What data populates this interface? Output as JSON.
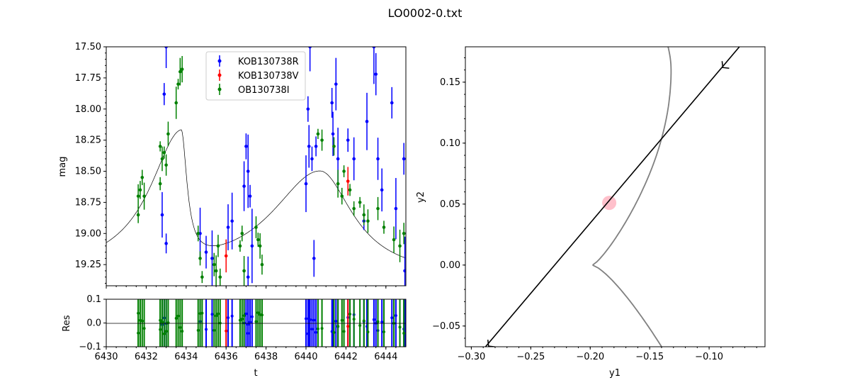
{
  "title": "LO0002-0.txt",
  "chart_data": [
    {
      "type": "scatter",
      "panel": "lightcurve",
      "xlabel": "",
      "ylabel": "mag",
      "xlim": [
        6430,
        6445
      ],
      "ylim": [
        19.42,
        17.5
      ],
      "y_inverted": true,
      "xticks": [
        6430,
        6432,
        6434,
        6436,
        6438,
        6440,
        6442,
        6444
      ],
      "yticks": [
        "17.50",
        "17.75",
        "18.00",
        "18.25",
        "18.50",
        "18.75",
        "19.00",
        "19.25"
      ],
      "legend": "upper-center",
      "series": [
        {
          "name": "KOB130738R",
          "color": "#0000ff",
          "points": [
            [
              6432.8,
              18.85
            ],
            [
              6432.9,
              17.88
            ],
            [
              6433.0,
              17.5
            ],
            [
              6433.0,
              19.08
            ],
            [
              6434.7,
              19.0
            ],
            [
              6435.0,
              19.15
            ],
            [
              6435.3,
              19.2
            ],
            [
              6436.1,
              18.95
            ],
            [
              6436.3,
              18.9
            ],
            [
              6436.9,
              18.62
            ],
            [
              6437.0,
              18.3
            ],
            [
              6437.1,
              18.5
            ],
            [
              6437.2,
              18.7
            ],
            [
              6437.3,
              19.1
            ],
            [
              6437.1,
              19.35
            ],
            [
              6440.0,
              18.6
            ],
            [
              6440.1,
              18.0
            ],
            [
              6440.15,
              18.3
            ],
            [
              6440.2,
              17.5
            ],
            [
              6440.3,
              18.4
            ],
            [
              6440.4,
              19.2
            ],
            [
              6440.5,
              18.3
            ],
            [
              6441.3,
              17.95
            ],
            [
              6441.35,
              18.2
            ],
            [
              6441.5,
              17.8
            ],
            [
              6441.6,
              18.4
            ],
            [
              6442.1,
              18.25
            ],
            [
              6442.4,
              18.4
            ],
            [
              6442.9,
              18.9
            ],
            [
              6443.05,
              18.1
            ],
            [
              6443.4,
              17.5
            ],
            [
              6443.5,
              17.72
            ],
            [
              6443.6,
              18.4
            ],
            [
              6443.8,
              18.65
            ],
            [
              6444.3,
              17.95
            ],
            [
              6444.5,
              18.8
            ],
            [
              6444.9,
              18.4
            ],
            [
              6444.95,
              19.3
            ]
          ]
        },
        {
          "name": "KOB130738V",
          "color": "#ff0000",
          "points": [
            [
              6436.0,
              19.18
            ],
            [
              6442.1,
              18.58
            ]
          ]
        },
        {
          "name": "OB130738I",
          "color": "#008000",
          "points": [
            [
              6431.6,
              18.7
            ],
            [
              6431.7,
              18.65
            ],
            [
              6431.8,
              18.55
            ],
            [
              6431.9,
              18.7
            ],
            [
              6431.6,
              18.85
            ],
            [
              6432.7,
              18.3
            ],
            [
              6432.8,
              18.4
            ],
            [
              6432.9,
              18.35
            ],
            [
              6433.0,
              18.45
            ],
            [
              6433.1,
              18.2
            ],
            [
              6432.7,
              18.6
            ],
            [
              6433.5,
              17.95
            ],
            [
              6433.6,
              17.8
            ],
            [
              6433.7,
              17.7
            ],
            [
              6433.8,
              17.68
            ],
            [
              6434.6,
              19.0
            ],
            [
              6434.7,
              19.2
            ],
            [
              6434.8,
              19.35
            ],
            [
              6435.4,
              19.25
            ],
            [
              6435.5,
              19.3
            ],
            [
              6435.6,
              19.1
            ],
            [
              6435.7,
              19.35
            ],
            [
              6436.7,
              19.1
            ],
            [
              6436.8,
              19.0
            ],
            [
              6436.9,
              19.3
            ],
            [
              6437.6,
              19.05
            ],
            [
              6437.7,
              19.1
            ],
            [
              6437.8,
              19.25
            ],
            [
              6437.5,
              18.95
            ],
            [
              6440.6,
              18.2
            ],
            [
              6440.8,
              18.25
            ],
            [
              6441.4,
              18.3
            ],
            [
              6441.6,
              18.6
            ],
            [
              6441.8,
              18.7
            ],
            [
              6441.9,
              18.5
            ],
            [
              6442.2,
              18.65
            ],
            [
              6442.4,
              18.8
            ],
            [
              6442.7,
              18.75
            ],
            [
              6442.9,
              18.85
            ],
            [
              6443.1,
              18.9
            ],
            [
              6443.6,
              18.8
            ],
            [
              6443.9,
              18.95
            ],
            [
              6444.4,
              19.05
            ],
            [
              6444.7,
              19.1
            ],
            [
              6444.9,
              19.0
            ]
          ]
        }
      ]
    },
    {
      "type": "scatter",
      "panel": "residuals",
      "xlabel": "t",
      "ylabel": "Res",
      "xlim": [
        6430,
        6445
      ],
      "ylim": [
        -0.1,
        0.1
      ],
      "xticks": [
        "6430",
        "6432",
        "6434",
        "6436",
        "6438",
        "6440",
        "6442",
        "6444"
      ],
      "yticks": [
        "0.1",
        "0.0",
        "−0.1"
      ]
    },
    {
      "type": "line",
      "panel": "caustic",
      "xlabel": "y1",
      "ylabel": "y2",
      "xlim": [
        -0.305,
        -0.053
      ],
      "ylim": [
        -0.067,
        0.179
      ],
      "xticks": [
        "−0.30",
        "−0.25",
        "−0.20",
        "−0.15",
        "−0.10"
      ],
      "yticks": [
        "0.15",
        "0.10",
        "0.05",
        "0.00",
        "−0.05"
      ],
      "caustic_color": "#808080",
      "trajectory_color": "#000000",
      "source_color": "#ffc0cb",
      "source": [
        -0.184,
        0.051
      ]
    }
  ]
}
